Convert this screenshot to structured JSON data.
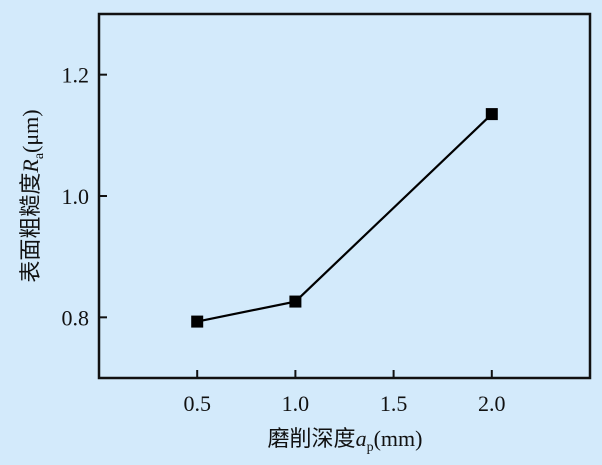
{
  "chart_data": {
    "type": "line",
    "title": "",
    "xlabel": "磨削深度a_p(mm)",
    "xlabel_parts": {
      "text": "磨削深度",
      "var": "a",
      "sub": "p",
      "unit": "(mm)"
    },
    "ylabel": "表面粗糙度R_a(μm)",
    "ylabel_parts": {
      "text": "表面粗糙度",
      "var": "R",
      "sub": "a",
      "unit": "(μm)"
    },
    "xlim": [
      0,
      2.5
    ],
    "ylim": [
      0.7,
      1.3
    ],
    "xticks": [
      0.5,
      1.0,
      1.5,
      2.0
    ],
    "xtick_labels": [
      "0.5",
      "1.0",
      "1.5",
      "2.0"
    ],
    "yticks": [
      0.8,
      1.0,
      1.2
    ],
    "ytick_labels": [
      "0.8",
      "1.0",
      "1.2"
    ],
    "grid": false,
    "marker": "square",
    "colors": {
      "line": "#000000",
      "background": "#d3eafb"
    },
    "series": [
      {
        "x": [
          0.5,
          1.0,
          2.0
        ],
        "y": [
          0.793,
          0.826,
          1.135
        ]
      }
    ]
  }
}
